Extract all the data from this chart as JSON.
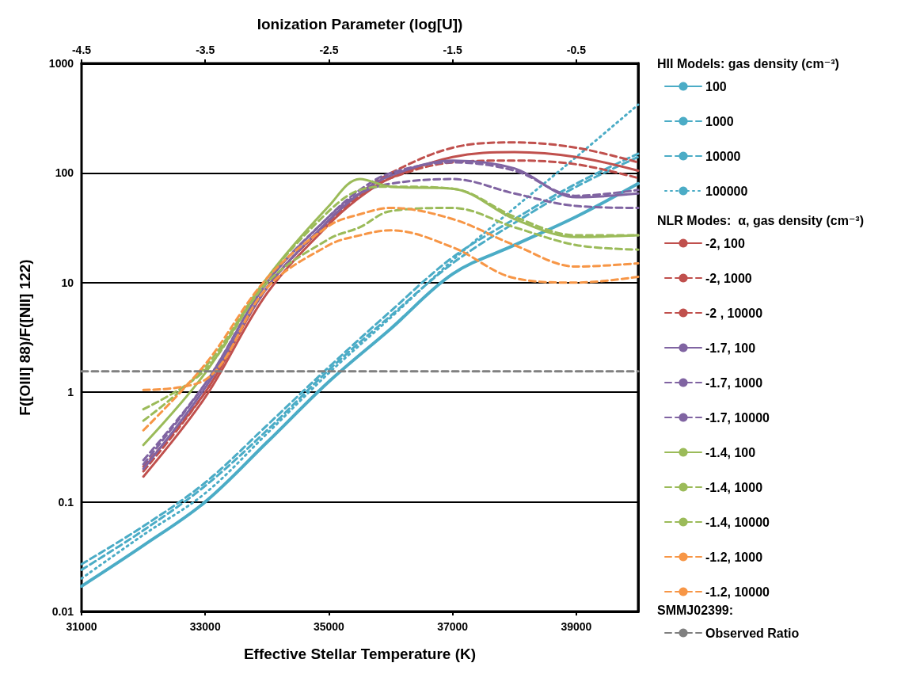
{
  "chart_data": {
    "type": "line",
    "xlabel": "Effective Stellar Temperature (K)",
    "ylabel": "F([OIII] 88)/F([NII] 122)",
    "x2label": "Ionization Parameter (log[U])",
    "legend_title": "HII Models: gas density (cm⁻³)",
    "annotations": [
      "NLR Modes:  α, gas density (cm⁻³)",
      "SMMJ02399:"
    ],
    "xlim": [
      31000,
      40000
    ],
    "xticks": [
      31000,
      33000,
      35000,
      37000,
      39000
    ],
    "x2lim": [
      -4.5,
      0
    ],
    "x2ticks": [
      -4.5,
      -3.5,
      -2.5,
      -1.5,
      -0.5
    ],
    "ylim": [
      0.01,
      1000
    ],
    "yticks": [
      0.01,
      0.1,
      1,
      10,
      100,
      1000
    ],
    "log": "y",
    "grid": "y",
    "legend": "right",
    "marker": "none",
    "x": [
      32000,
      33000,
      34000,
      35000,
      35500,
      36000,
      37000,
      38000,
      39000,
      40000
    ],
    "series": [
      {
        "name": "100",
        "color": "#4bacc6",
        "line_style": "solid",
        "x": [
          31000,
          32000,
          33000,
          34000,
          35000,
          36000,
          37000,
          38000,
          39000,
          40000
        ],
        "values": [
          0.017,
          0.04,
          0.1,
          0.35,
          1.25,
          3.8,
          12,
          22,
          40,
          80
        ]
      },
      {
        "name": "1000",
        "color": "#4bacc6",
        "line_style": "dashed",
        "x": [
          31000,
          32000,
          33000,
          34000,
          35000,
          36000,
          37000,
          38000,
          39000,
          40000
        ],
        "values": [
          0.027,
          0.06,
          0.15,
          0.5,
          1.7,
          5.5,
          17,
          38,
          80,
          150
        ]
      },
      {
        "name": "10000",
        "color": "#4bacc6",
        "line_style": "dashed",
        "x": [
          31000,
          32000,
          33000,
          34000,
          35000,
          36000,
          37000,
          38000,
          39000,
          40000
        ],
        "values": [
          0.024,
          0.055,
          0.14,
          0.45,
          1.6,
          5,
          15,
          35,
          75,
          140
        ]
      },
      {
        "name": "100000",
        "color": "#4bacc6",
        "line_style": "dotted",
        "x": [
          31000,
          32000,
          33000,
          34000,
          35000,
          36000,
          37000,
          38000,
          39000,
          40000
        ],
        "values": [
          0.02,
          0.05,
          0.12,
          0.42,
          1.5,
          4.8,
          16,
          48,
          140,
          420
        ]
      },
      {
        "name": "-2, 100",
        "color": "#c0504d",
        "line_style": "solid",
        "values": [
          0.17,
          0.9,
          8,
          34,
          60,
          90,
          140,
          155,
          140,
          105
        ]
      },
      {
        "name": "-2, 1000",
        "color": "#c0504d",
        "line_style": "dashed",
        "values": [
          0.19,
          1.0,
          9,
          37,
          65,
          100,
          170,
          190,
          170,
          125
        ]
      },
      {
        "name": "-2 , 10000",
        "color": "#c0504d",
        "line_style": "dashed",
        "values": [
          0.21,
          1.0,
          9,
          36,
          62,
          90,
          125,
          130,
          120,
          90
        ]
      },
      {
        "name": "-1.7, 100",
        "color": "#8064a2",
        "line_style": "solid",
        "values": [
          0.2,
          1.1,
          9,
          37,
          65,
          95,
          130,
          110,
          60,
          65
        ]
      },
      {
        "name": "-1.7, 1000",
        "color": "#8064a2",
        "line_style": "dashed",
        "values": [
          0.22,
          1.2,
          10,
          40,
          70,
          100,
          125,
          105,
          62,
          70
        ]
      },
      {
        "name": "-1.7, 10000",
        "color": "#8064a2",
        "line_style": "dashed",
        "values": [
          0.24,
          1.2,
          10,
          40,
          65,
          80,
          88,
          65,
          50,
          48
        ]
      },
      {
        "name": "-1.4, 100",
        "color": "#9bbb59",
        "line_style": "solid",
        "values": [
          0.33,
          1.5,
          11,
          50,
          88,
          75,
          72,
          38,
          26,
          27
        ]
      },
      {
        "name": "-1.4, 1000",
        "color": "#9bbb59",
        "line_style": "dashed",
        "values": [
          0.55,
          1.7,
          11,
          45,
          70,
          75,
          72,
          40,
          27,
          27
        ]
      },
      {
        "name": "-1.4, 10000",
        "color": "#9bbb59",
        "line_style": "dashed",
        "values": [
          0.7,
          1.6,
          10,
          25,
          32,
          45,
          48,
          32,
          22,
          20
        ]
      },
      {
        "name": "-1.2, 1000",
        "color": "#f79646",
        "line_style": "dashed",
        "values": [
          0.45,
          1.8,
          11,
          33,
          42,
          48,
          38,
          22,
          14,
          15
        ]
      },
      {
        "name": "-1.2, 10000",
        "color": "#f79646",
        "line_style": "dashed",
        "values": [
          1.05,
          1.3,
          9,
          22,
          27,
          30,
          21,
          11,
          10,
          11.3
        ]
      },
      {
        "name": "Observed Ratio",
        "color": "#808080",
        "line_style": "dashed",
        "x": [
          31000,
          40000
        ],
        "values": [
          1.55,
          1.55
        ]
      }
    ]
  }
}
